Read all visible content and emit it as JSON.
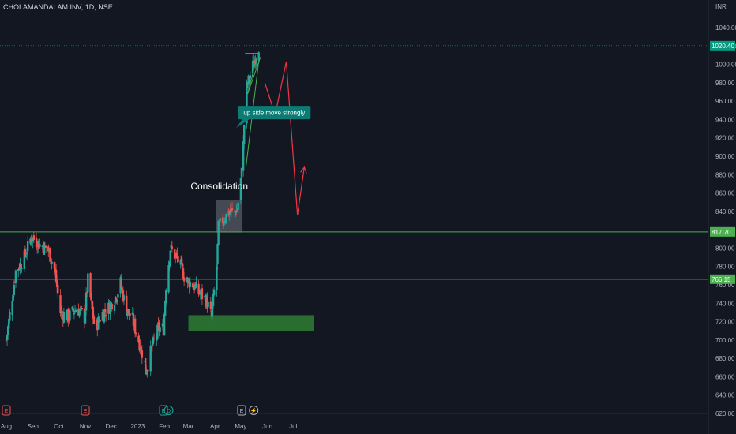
{
  "header": {
    "symbol_line": "CHOLAMANDALAM INV, 1D, NSE",
    "currency": "INR"
  },
  "colors": {
    "background": "#131722",
    "bull": "#26a69a",
    "bear": "#ef5350",
    "support_line": "#4caf50",
    "zone": "#2e7d32",
    "arrow": "#f23645",
    "label_bg": "#0b7b74",
    "price_tag": "#089981",
    "axis_text": "#b2b5be"
  },
  "chart_data": {
    "type": "candlestick",
    "title": "",
    "xlabel": "",
    "ylabel": "",
    "ylim": [
      620,
      1040
    ],
    "y_ticks": [
      620,
      640,
      660,
      680,
      700,
      720,
      740,
      760,
      780,
      800,
      820,
      840,
      860,
      880,
      900,
      920,
      940,
      960,
      980,
      1000,
      1020,
      1040
    ],
    "x_ticks": [
      "Aug",
      "Sep",
      "Oct",
      "Nov",
      "Dec",
      "2023",
      "Feb",
      "Mar",
      "Apr",
      "May",
      "Jun",
      "Jul"
    ],
    "grid": false,
    "anchors": [
      [
        "2022-08-01",
        700
      ],
      [
        "2022-08-12",
        775
      ],
      [
        "2022-08-22",
        790
      ],
      [
        "2022-08-30",
        812
      ],
      [
        "2022-09-10",
        803
      ],
      [
        "2022-09-18",
        800
      ],
      [
        "2022-09-26",
        778
      ],
      [
        "2022-10-03",
        730
      ],
      [
        "2022-10-12",
        725
      ],
      [
        "2022-10-22",
        735
      ],
      [
        "2022-10-31",
        725
      ],
      [
        "2022-11-04",
        765
      ],
      [
        "2022-11-12",
        712
      ],
      [
        "2022-11-20",
        728
      ],
      [
        "2022-11-28",
        735
      ],
      [
        "2022-12-08",
        750
      ],
      [
        "2022-12-12",
        762
      ],
      [
        "2022-12-18",
        735
      ],
      [
        "2022-12-26",
        722
      ],
      [
        "2023-01-05",
        690
      ],
      [
        "2023-01-11",
        667
      ],
      [
        "2023-01-17",
        690
      ],
      [
        "2023-01-25",
        712
      ],
      [
        "2023-01-31",
        713
      ],
      [
        "2023-02-03",
        760
      ],
      [
        "2023-02-08",
        800
      ],
      [
        "2023-02-18",
        785
      ],
      [
        "2023-02-26",
        765
      ],
      [
        "2023-03-05",
        762
      ],
      [
        "2023-03-13",
        752
      ],
      [
        "2023-03-22",
        743
      ],
      [
        "2023-03-28",
        725
      ],
      [
        "2023-04-03",
        780
      ],
      [
        "2023-04-05",
        822
      ],
      [
        "2023-04-11",
        832
      ],
      [
        "2023-04-18",
        840
      ],
      [
        "2023-04-22",
        838
      ],
      [
        "2023-04-27",
        842
      ],
      [
        "2023-05-03",
        890
      ],
      [
        "2023-05-05",
        935
      ],
      [
        "2023-05-08",
        975
      ],
      [
        "2023-05-13",
        992
      ],
      [
        "2023-05-18",
        1008
      ],
      [
        "2023-05-22",
        1020
      ]
    ],
    "levels": [
      {
        "label": "817.70",
        "price": 817.7
      },
      {
        "label": "766.15",
        "price": 766.15
      }
    ],
    "last_price": {
      "label": "1020.40",
      "price": 1020.4
    },
    "zones": [
      {
        "kind": "demand",
        "from": "2023-03-01",
        "to": "2023-07-25",
        "high": 727,
        "low": 710
      },
      {
        "kind": "consolidation",
        "from": "2023-04-02",
        "to": "2023-05-03",
        "high": 852,
        "low": 817
      }
    ],
    "annotations": [
      {
        "kind": "text",
        "text": "Consolidation",
        "date": "2023-04-06",
        "price": 864
      },
      {
        "kind": "callout",
        "text": "up side move strongly",
        "date": "2023-06-09",
        "price": 948
      }
    ],
    "projection": [
      [
        "2023-05-29",
        980
      ],
      [
        "2023-06-10",
        945
      ],
      [
        "2023-06-23",
        1003
      ],
      [
        "2023-07-06",
        836
      ],
      [
        "2023-07-14",
        888
      ]
    ],
    "trendlines": [
      {
        "from": [
          "2023-05-07",
          888
        ],
        "to": [
          "2023-05-22",
          1004
        ]
      },
      {
        "from": [
          "2023-05-09",
          968
        ],
        "to": [
          "2023-05-19",
          1005
        ]
      },
      {
        "from": [
          "2023-05-09",
          968
        ],
        "to": [
          "2023-05-24",
          1008
        ]
      },
      {
        "from": [
          "2023-05-06",
          1012
        ],
        "to": [
          "2023-05-21",
          1012
        ]
      }
    ],
    "event_markers": [
      {
        "symbol": "E",
        "date": "2022-08-01",
        "color": "#ef5350"
      },
      {
        "symbol": "E",
        "date": "2022-11-01",
        "color": "#ef5350"
      },
      {
        "symbol": "E",
        "date": "2023-01-31",
        "color": "#26a69a"
      },
      {
        "symbol": "D",
        "date": "2023-02-06",
        "color": "#26a69a"
      },
      {
        "symbol": "E",
        "date": "2023-05-02",
        "color": "#b2b5be"
      },
      {
        "symbol": "⚡",
        "date": "2023-05-16",
        "color": "#b2b5be"
      }
    ]
  }
}
